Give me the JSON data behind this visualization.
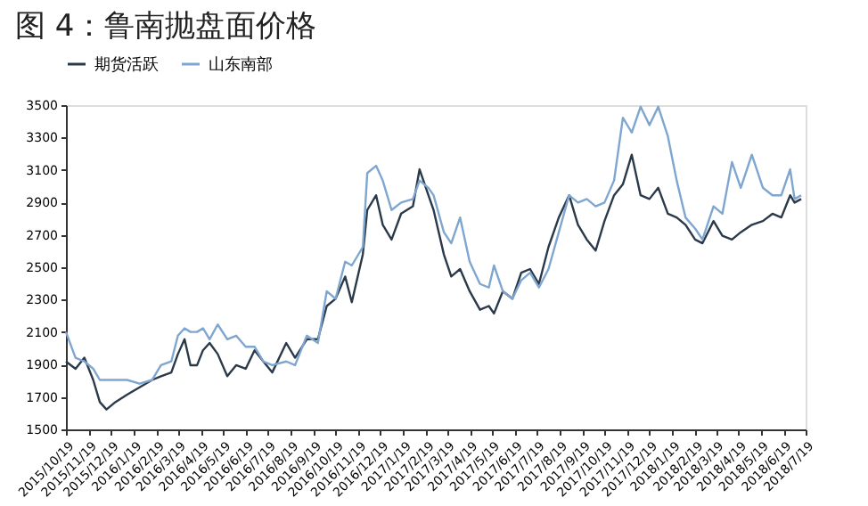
{
  "chart_data": {
    "type": "line",
    "title": "图 4：鲁南抛盘面价格",
    "series": [
      {
        "name": "期货活跃",
        "color": "#2b3a4a",
        "x": [
          "2015-10-19",
          "2015-11-01",
          "2015-11-13",
          "2015-11-25",
          "2015-12-04",
          "2015-12-13",
          "2015-12-25",
          "2016-01-10",
          "2016-01-27",
          "2016-02-13",
          "2016-02-25",
          "2016-03-10",
          "2016-03-19",
          "2016-03-28",
          "2016-04-05",
          "2016-04-14",
          "2016-04-22",
          "2016-05-01",
          "2016-05-12",
          "2016-05-25",
          "2016-06-06",
          "2016-06-19",
          "2016-07-01",
          "2016-07-13",
          "2016-07-25",
          "2016-08-13",
          "2016-08-25",
          "2016-09-10",
          "2016-09-25",
          "2016-10-07",
          "2016-10-19",
          "2016-11-01",
          "2016-11-10",
          "2016-11-25",
          "2016-12-01",
          "2016-12-13",
          "2016-12-22",
          "2017-01-03",
          "2017-01-16",
          "2017-02-01",
          "2017-02-10",
          "2017-02-22",
          "2017-03-01",
          "2017-03-15",
          "2017-03-25",
          "2017-04-06",
          "2017-04-19",
          "2017-05-03",
          "2017-05-15",
          "2017-05-22",
          "2017-06-03",
          "2017-06-16",
          "2017-06-28",
          "2017-07-10",
          "2017-07-22",
          "2017-08-04",
          "2017-08-18",
          "2017-09-01",
          "2017-09-13",
          "2017-09-25",
          "2017-10-07",
          "2017-10-19",
          "2017-11-01",
          "2017-11-13",
          "2017-11-25",
          "2017-12-07",
          "2017-12-19",
          "2017-12-31",
          "2018-01-13",
          "2018-01-25",
          "2018-02-06",
          "2018-02-19",
          "2018-03-01",
          "2018-03-16",
          "2018-03-28",
          "2018-04-10",
          "2018-04-22",
          "2018-05-07",
          "2018-05-22",
          "2018-06-04",
          "2018-06-16",
          "2018-06-28",
          "2018-07-04",
          "2018-07-13"
        ],
        "values": [
          1919,
          1874,
          1942,
          1805,
          1668,
          1623,
          1668,
          1714,
          1760,
          1805,
          1828,
          1851,
          1965,
          2056,
          1896,
          1896,
          1988,
          2033,
          1965,
          1828,
          1896,
          1874,
          1988,
          1919,
          1851,
          2033,
          1942,
          2056,
          2056,
          2261,
          2306,
          2443,
          2284,
          2580,
          2853,
          2944,
          2762,
          2671,
          2831,
          2876,
          3104,
          2944,
          2853,
          2579,
          2443,
          2489,
          2352,
          2238,
          2261,
          2215,
          2352,
          2306,
          2466,
          2489,
          2397,
          2625,
          2807,
          2944,
          2762,
          2671,
          2603,
          2785,
          2944,
          3012,
          3194,
          2944,
          2921,
          2990,
          2830,
          2807,
          2762,
          2671,
          2648,
          2785,
          2694,
          2671,
          2716,
          2762,
          2785,
          2830,
          2807,
          2944,
          2899,
          2921
        ]
      },
      {
        "name": "山东南部",
        "color": "#7fa6d0",
        "x": [
          "2015-10-19",
          "2015-11-01",
          "2015-11-13",
          "2015-11-25",
          "2015-12-04",
          "2015-12-13",
          "2015-12-25",
          "2016-01-10",
          "2016-01-27",
          "2016-02-13",
          "2016-02-25",
          "2016-03-10",
          "2016-03-19",
          "2016-03-28",
          "2016-04-05",
          "2016-04-14",
          "2016-04-22",
          "2016-05-01",
          "2016-05-12",
          "2016-05-25",
          "2016-06-06",
          "2016-06-19",
          "2016-07-01",
          "2016-07-13",
          "2016-07-25",
          "2016-08-13",
          "2016-08-25",
          "2016-09-10",
          "2016-09-25",
          "2016-10-07",
          "2016-10-19",
          "2016-11-01",
          "2016-11-10",
          "2016-11-25",
          "2016-12-01",
          "2016-12-13",
          "2016-12-22",
          "2017-01-03",
          "2017-01-16",
          "2017-02-01",
          "2017-02-10",
          "2017-02-22",
          "2017-03-01",
          "2017-03-15",
          "2017-03-25",
          "2017-04-06",
          "2017-04-19",
          "2017-05-03",
          "2017-05-15",
          "2017-05-22",
          "2017-06-03",
          "2017-06-16",
          "2017-06-28",
          "2017-07-10",
          "2017-07-22",
          "2017-08-04",
          "2017-08-18",
          "2017-09-01",
          "2017-09-13",
          "2017-09-25",
          "2017-10-07",
          "2017-10-19",
          "2017-11-01",
          "2017-11-13",
          "2017-11-25",
          "2017-12-07",
          "2017-12-19",
          "2017-12-31",
          "2018-01-13",
          "2018-01-25",
          "2018-02-06",
          "2018-02-19",
          "2018-03-01",
          "2018-03-16",
          "2018-03-28",
          "2018-04-10",
          "2018-04-22",
          "2018-05-07",
          "2018-05-22",
          "2018-06-04",
          "2018-06-16",
          "2018-06-28",
          "2018-07-04",
          "2018-07-13"
        ],
        "values": [
          2101,
          1942,
          1919,
          1874,
          1805,
          1805,
          1805,
          1805,
          1782,
          1805,
          1896,
          1919,
          2078,
          2124,
          2101,
          2101,
          2124,
          2056,
          2147,
          2056,
          2078,
          2010,
          2010,
          1919,
          1896,
          1919,
          1896,
          2078,
          2033,
          2352,
          2306,
          2534,
          2511,
          2625,
          3081,
          3126,
          3035,
          2853,
          2899,
          2921,
          3035,
          2990,
          2944,
          2716,
          2648,
          2807,
          2534,
          2397,
          2375,
          2511,
          2352,
          2306,
          2420,
          2466,
          2375,
          2489,
          2716,
          2944,
          2899,
          2921,
          2876,
          2899,
          3035,
          3422,
          3331,
          3490,
          3377,
          3490,
          3308,
          3035,
          2807,
          2739,
          2671,
          2876,
          2830,
          3149,
          2990,
          3194,
          2990,
          2944,
          2944,
          3104,
          2921,
          2944
        ]
      }
    ],
    "xlim": [
      "2015-10-19",
      "2018-07-19"
    ],
    "xticks": [
      {
        "value": "2015-10-19",
        "label": "2015/10/19"
      },
      {
        "value": "2015-11-19",
        "label": "2015/11/19"
      },
      {
        "value": "2015-12-19",
        "label": "2015/12/19"
      },
      {
        "value": "2016-01-19",
        "label": "2016/1/19"
      },
      {
        "value": "2016-02-19",
        "label": "2016/2/19"
      },
      {
        "value": "2016-03-19",
        "label": "2016/3/19"
      },
      {
        "value": "2016-04-19",
        "label": "2016/4/19"
      },
      {
        "value": "2016-05-19",
        "label": "2016/5/19"
      },
      {
        "value": "2016-06-19",
        "label": "2016/6/19"
      },
      {
        "value": "2016-07-19",
        "label": "2016/7/19"
      },
      {
        "value": "2016-08-19",
        "label": "2016/8/19"
      },
      {
        "value": "2016-09-19",
        "label": "2016/9/19"
      },
      {
        "value": "2016-10-19",
        "label": "2016/10/19"
      },
      {
        "value": "2016-11-19",
        "label": "2016/11/19"
      },
      {
        "value": "2016-12-19",
        "label": "2016/12/19"
      },
      {
        "value": "2017-01-19",
        "label": "2017/1/19"
      },
      {
        "value": "2017-02-19",
        "label": "2017/2/19"
      },
      {
        "value": "2017-03-19",
        "label": "2017/3/19"
      },
      {
        "value": "2017-04-19",
        "label": "2017/4/19"
      },
      {
        "value": "2017-05-19",
        "label": "2017/5/19"
      },
      {
        "value": "2017-06-19",
        "label": "2017/6/19"
      },
      {
        "value": "2017-07-19",
        "label": "2017/7/19"
      },
      {
        "value": "2017-08-19",
        "label": "2017/8/19"
      },
      {
        "value": "2017-09-19",
        "label": "2017/9/19"
      },
      {
        "value": "2017-10-19",
        "label": "2017/10/19"
      },
      {
        "value": "2017-11-19",
        "label": "2017/11/19"
      },
      {
        "value": "2017-12-19",
        "label": "2017/12/19"
      },
      {
        "value": "2018-01-19",
        "label": "2018/1/19"
      },
      {
        "value": "2018-02-19",
        "label": "2018/2/19"
      },
      {
        "value": "2018-03-19",
        "label": "2018/3/19"
      },
      {
        "value": "2018-04-19",
        "label": "2018/4/19"
      },
      {
        "value": "2018-05-19",
        "label": "2018/5/19"
      },
      {
        "value": "2018-06-19",
        "label": "2018/6/19"
      },
      {
        "value": "2018-07-19",
        "label": "2018/7/19"
      }
    ],
    "ylim": [
      1500,
      3500
    ],
    "yticks": [
      1500,
      1700,
      1900,
      2100,
      2300,
      2500,
      2700,
      2900,
      3100,
      3300,
      3500
    ],
    "grid": false,
    "legend": "top",
    "marker": "none",
    "line_style": "solid"
  }
}
